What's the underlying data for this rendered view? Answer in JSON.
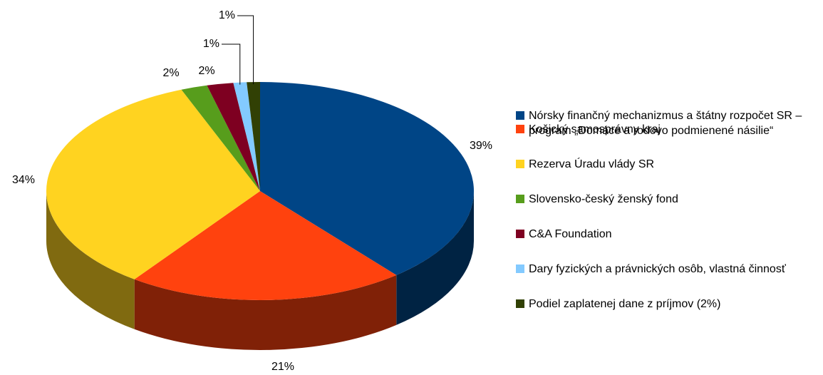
{
  "chart_data": {
    "type": "pie3d",
    "categories": [
      "Nórsky finančný mechanizmus a štátny rozpočet SR – program „Domáce a rodovo podmienené násilie“",
      "Košický samosprávny kraj",
      "Rezerva Úradu vlády SR",
      "Slovensko-český ženský fond",
      "C&A Foundation",
      "Dary fyzických a právnických osôb, vlastná činnosť",
      "Podiel zaplatenej dane z príjmov (2%)"
    ],
    "values": [
      39,
      21,
      34,
      2,
      2,
      1,
      1
    ],
    "value_labels": [
      "39%",
      "21%",
      "34%",
      "2%",
      "2%",
      "1%",
      "1%"
    ],
    "colors": [
      "#004586",
      "#ff420e",
      "#ffd320",
      "#579d1c",
      "#7e0021",
      "#83caff",
      "#314004"
    ],
    "legend": "right"
  }
}
